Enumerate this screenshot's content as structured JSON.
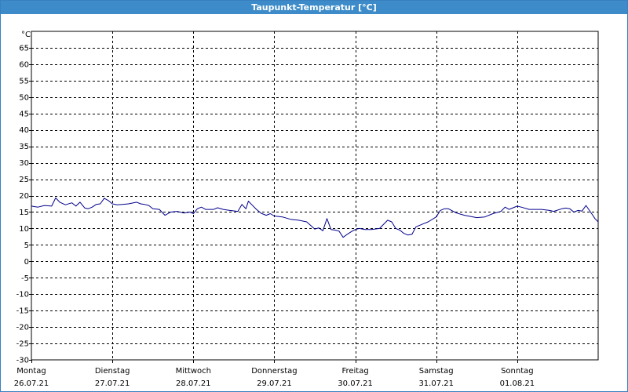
{
  "window": {
    "title": "Taupunkt-Temperatur [°C]"
  },
  "chart_data": {
    "type": "line",
    "title": "Taupunkt-Temperatur [°C]",
    "unit_label": "°C",
    "ylim": [
      -30,
      70
    ],
    "y_ticks": [
      65,
      60,
      55,
      50,
      45,
      40,
      35,
      30,
      25,
      20,
      15,
      10,
      5,
      0,
      -5,
      -10,
      -15,
      -20,
      -25,
      -30
    ],
    "xlim": [
      0,
      7
    ],
    "x_days": [
      {
        "day": "Montag",
        "date": "26.07.21"
      },
      {
        "day": "Dienstag",
        "date": "27.07.21"
      },
      {
        "day": "Mittwoch",
        "date": "28.07.21"
      },
      {
        "day": "Donnerstag",
        "date": "29.07.21"
      },
      {
        "day": "Freitag",
        "date": "30.07.21"
      },
      {
        "day": "Samstag",
        "date": "31.07.21"
      },
      {
        "day": "Sonntag",
        "date": "01.08.21"
      }
    ],
    "grid": true,
    "line_color": "#00008b",
    "series": [
      {
        "x": [
          0.0,
          0.08,
          0.16,
          0.25,
          0.3,
          0.35,
          0.42,
          0.5,
          0.55,
          0.6,
          0.66,
          0.7,
          0.75,
          0.8,
          0.85,
          0.9,
          0.95,
          1.0,
          1.06,
          1.12,
          1.2,
          1.3,
          1.35,
          1.4,
          1.45,
          1.5,
          1.58,
          1.65,
          1.72,
          1.8,
          1.88,
          1.96,
          2.0,
          2.05,
          2.1,
          2.15,
          2.25,
          2.3,
          2.37,
          2.45,
          2.55,
          2.6,
          2.65,
          2.68,
          2.72,
          2.78,
          2.84,
          2.9,
          2.95,
          3.0,
          3.1,
          3.2,
          3.3,
          3.4,
          3.5,
          3.55,
          3.6,
          3.65,
          3.7,
          3.75,
          3.8,
          3.85,
          3.9,
          3.95,
          4.0,
          4.05,
          4.12,
          4.2,
          4.3,
          4.4,
          4.45,
          4.5,
          4.55,
          4.6,
          4.65,
          4.7,
          4.75,
          4.8,
          4.85,
          4.9,
          5.0,
          5.05,
          5.1,
          5.15,
          5.25,
          5.35,
          5.5,
          5.6,
          5.7,
          5.8,
          5.85,
          5.9,
          6.0,
          6.05,
          6.15,
          6.25,
          6.3,
          6.4,
          6.45,
          6.55,
          6.6,
          6.65,
          6.7,
          6.75,
          6.8,
          6.85,
          6.92,
          6.96,
          7.0
        ],
        "y": [
          16.8,
          16.5,
          17.0,
          16.8,
          19.3,
          18.0,
          17.2,
          17.8,
          16.8,
          18.0,
          16.2,
          16.0,
          16.5,
          17.3,
          17.5,
          19.2,
          18.5,
          17.5,
          17.2,
          17.3,
          17.5,
          18.0,
          17.5,
          17.3,
          17.0,
          16.0,
          15.8,
          14.0,
          15.0,
          15.2,
          14.7,
          15.0,
          14.5,
          16.0,
          16.5,
          15.8,
          15.8,
          16.3,
          15.8,
          15.5,
          15.2,
          17.3,
          16.0,
          18.3,
          17.3,
          15.8,
          14.6,
          14.0,
          14.5,
          13.8,
          13.5,
          12.8,
          12.5,
          12.0,
          9.8,
          10.2,
          9.3,
          13.0,
          9.7,
          9.5,
          9.2,
          7.3,
          8.2,
          9.0,
          9.7,
          10.0,
          9.7,
          9.7,
          10.0,
          12.5,
          12.0,
          10.0,
          9.5,
          8.5,
          8.0,
          8.2,
          10.5,
          11.0,
          11.5,
          12.0,
          13.5,
          15.5,
          16.0,
          16.0,
          14.7,
          14.0,
          13.3,
          13.5,
          14.5,
          15.2,
          16.5,
          15.8,
          16.8,
          16.5,
          15.8,
          15.8,
          15.8,
          15.5,
          15.2,
          16.0,
          16.2,
          16.0,
          15.0,
          15.5,
          15.3,
          17.0,
          14.5,
          13.0,
          12.0
        ]
      }
    ]
  }
}
